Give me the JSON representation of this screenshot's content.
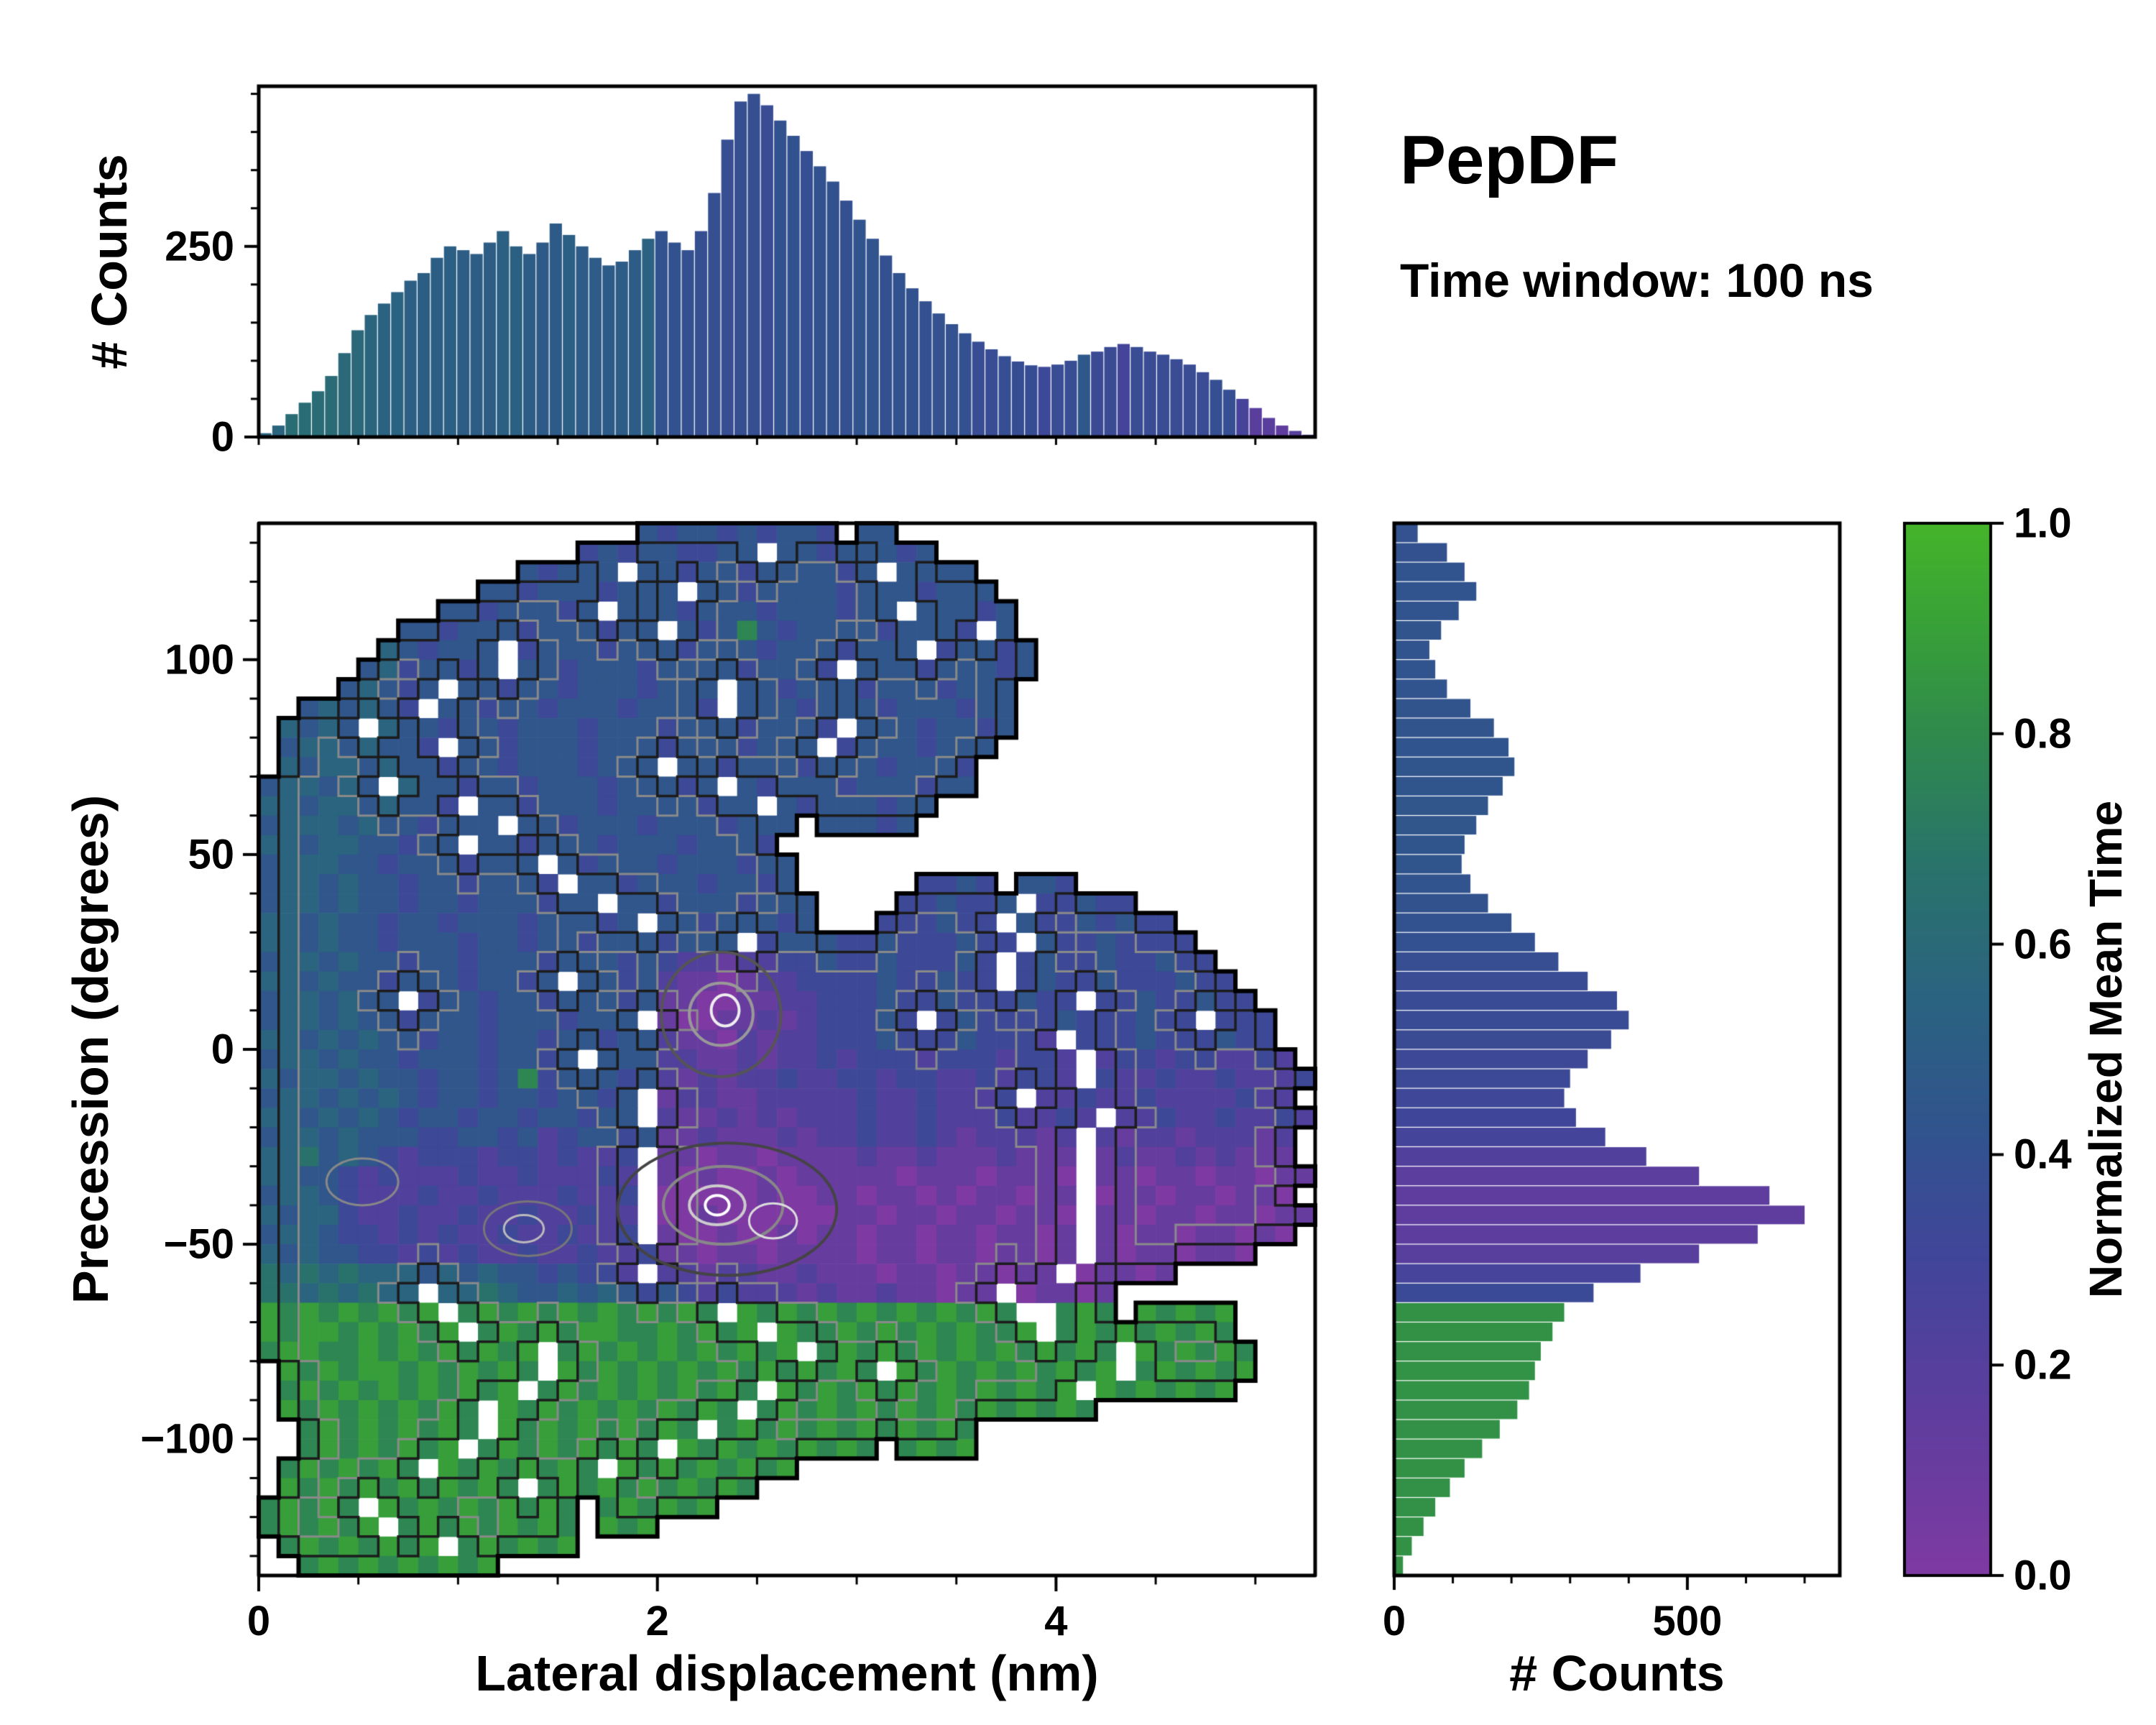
{
  "chart_data": {
    "type": "heatmap",
    "title": "PepDF",
    "subtitle": "Time window: 100 ns",
    "colormap": {
      "label": "Normalized Mean Time",
      "ticks": [
        0.0,
        0.2,
        0.4,
        0.6,
        0.8,
        1.0
      ],
      "stops": [
        {
          "t": 0.0,
          "color": "#7e3aa2"
        },
        {
          "t": 0.15,
          "color": "#5f3d9e"
        },
        {
          "t": 0.3,
          "color": "#41459a"
        },
        {
          "t": 0.42,
          "color": "#31538e"
        },
        {
          "t": 0.55,
          "color": "#2a6380"
        },
        {
          "t": 0.68,
          "color": "#29746a"
        },
        {
          "t": 0.8,
          "color": "#2f8a4c"
        },
        {
          "t": 0.9,
          "color": "#38a038"
        },
        {
          "t": 1.0,
          "color": "#45b42a"
        }
      ]
    },
    "heatmap": {
      "xlabel": "Lateral displacement (nm)",
      "ylabel": "Precession (degrees)",
      "xlim": [
        0,
        5.3
      ],
      "ylim": [
        -135,
        135
      ],
      "xticks": [
        0,
        2,
        4
      ],
      "yticks": [
        100,
        50,
        0,
        -50,
        -100
      ],
      "grid_cols": 53,
      "grid_rows": 54,
      "value_encoding": "rows are [start_col, segments...]; '.'=empty bin (white), digit d = Normalized Mean Time d/9; row 0 = y bin [130,135] deg, col 0 = x bin [0,0.1] nm",
      "rows": [
        [
          19,
          "4344343443.44"
        ],
        [
          16,
          "343443344.44344434"
        ],
        [
          13,
          "43444.443443444434.4444"
        ],
        [
          11,
          "4434443444.443444434443444"
        ],
        [
          9,
          "44344434.44434443444344.44434"
        ],
        [
          7,
          "4434443444344.434743444434443.4"
        ],
        [
          6,
          "543444.34443444344434443444.34434"
        ],
        [
          5,
          "4534434.4434443444434443.444344434"
        ],
        [
          4,
          "45434.4434434443444.44344434443444"
        ],
        [
          2,
          "454543.44344344434443.44434443444344"
        ],
        [
          1,
          "5454.54434434443444344434443.44434434"
        ],
        [
          1,
          "45545443.443444344434443444.34443444"
        ],
        [
          1,
          "5455454434434443444.443444344434443"
        ],
        [
          0,
          "455454.5443443444344434.434443444344"
        ],
        [
          0,
          "5545545443.44344434444344.43444344"
        ],
        [
          0,
          "455545443444.44344434443444.44434"
        ],
        [
          0,
          "5545544344.443444344434443"
        ],
        [
          0,
          "45554434443444.434443444344"
        ],
        [
          0,
          "455454434434443.44344434434",
          "......",
          "3343.443"
        ],
        [
          0,
          "45545443443444344.4434443444",
          "....",
          "334334.33433"
        ],
        [
          0,
          "5545443443444344434.44344434",
          "...",
          "333433.43343433"
        ],
        [
          0,
          "55454434",
          "4434434434443444.344",
          "4334333433.43343333"
        ],
        [
          0,
          "45545443",
          "443444344434",
          "32212233",
          "433433343.3433433433"
        ],
        [
          0,
          "55454434",
          "4434434.4434",
          "21101223",
          "333433433.34334333433"
        ],
        [
          0,
          "4554544.3",
          "44344344434",
          "11001122",
          "3334334333433.33433433"
        ],
        [
          0,
          "455454434",
          "4434443444.",
          "10011212",
          "33343.3433334333433.333"
        ],
        [
          0,
          "554545443",
          "44344344344",
          "21102122",
          "333433343332.3334333433."
        ],
        [
          0,
          "455454434",
          "4434434.444",
          "22112122",
          "3233323332332.2332332232."
        ],
        [
          0,
          "545545443",
          "44347344434",
          "21212232",
          "2332332232332.32232232223"
        ],
        [
          0,
          "455454543",
          "4434434434.",
          "12211222",
          "2232232223.2232232222322."
        ],
        [
          0,
          "554545434",
          "4344344344.",
          "21121212",
          "22322322232232.2232232232"
        ],
        [
          0,
          "455454443",
          "34434234434",
          "11211121",
          "2232232122212.2122122212."
        ],
        [
          0,
          "556454323",
          "3323323223.",
          "11011011",
          "1121121112111.1211212111."
        ],
        [
          0,
          "554432322",
          "2322322232.",
          "10100101",
          "1111011101110.11011011011"
        ],
        [
          0,
          "455432223",
          "2232223223.",
          "00000100",
          "1101101011011.0110110110."
        ],
        [
          0,
          "545532232",
          "2322322322.",
          "00100000",
          "0110110110110.11011011011"
        ],
        [
          0,
          "455433232",
          "3223223223.",
          "10010010",
          "1101101101101.1011011010."
        ],
        [
          0,
          "545443323",
          "23223223223",
          "11011011",
          "1101101101101.10110110."
        ],
        [
          0,
          "656565554",
          "5454434332.",
          "22122112",
          "111011011011.01101"
        ],
        [
          0,
          "66565655.",
          "55654454543",
          "43232221",
          "211211011.01101"
        ],
        [
          0,
          "878787878.7878787878787.87878787878787",
          "..",
          "787.87878"
        ],
        [
          0,
          "8788787878.78787887787878.8778787878778.787878787"
        ],
        [
          0,
          "78877878787878.787878787878.787878787878787.878787"
        ],
        [
          1,
          "8787887878787.8787878787878787.87878787878.787878"
        ],
        [
          1,
          "787878787878.78787878787.878787878787878.8787878"
        ],
        [
          1,
          "8787878787.878787878787.78787878787878787"
        ],
        [
          2,
          "787878787.8787878787.7878787878787"
        ],
        [
          2,
          "78787878.787878787.8787878787",
          ".",
          "7878"
        ],
        [
          1,
          "7878787.87878787.878787878"
        ],
        [
          1,
          "878787878787.78787878787"
        ],
        [
          0,
          "78787.8787878787.787878"
        ],
        [
          0,
          "787878.787878787.878"
        ],
        [
          1,
          "78787878.787878"
        ],
        [
          2,
          "7878787878"
        ]
      ],
      "contour_rings": [
        {
          "x": 2.32,
          "y": 9,
          "rx": 0.3,
          "ry": 16,
          "color": "#555555",
          "lw": 4
        },
        {
          "x": 2.32,
          "y": 9,
          "rx": 0.16,
          "ry": 8,
          "color": "#999999",
          "lw": 4
        },
        {
          "x": 2.34,
          "y": 10,
          "rx": 0.07,
          "ry": 4,
          "color": "#eeeeee",
          "lw": 4
        },
        {
          "x": 2.35,
          "y": -41,
          "rx": 0.55,
          "ry": 17,
          "color": "#444444",
          "lw": 4
        },
        {
          "x": 2.33,
          "y": -40,
          "rx": 0.3,
          "ry": 10,
          "color": "#888888",
          "lw": 4
        },
        {
          "x": 2.3,
          "y": -40,
          "rx": 0.14,
          "ry": 5,
          "color": "#cccccc",
          "lw": 4
        },
        {
          "x": 2.3,
          "y": -40,
          "rx": 0.06,
          "ry": 2.5,
          "color": "#ffffff",
          "lw": 4
        },
        {
          "x": 2.58,
          "y": -44,
          "rx": 0.12,
          "ry": 4.5,
          "color": "#dddddd",
          "lw": 3
        },
        {
          "x": 1.35,
          "y": -46,
          "rx": 0.22,
          "ry": 7,
          "color": "#777777",
          "lw": 3
        },
        {
          "x": 1.33,
          "y": -46,
          "rx": 0.1,
          "ry": 3.5,
          "color": "#bbbbbb",
          "lw": 3
        },
        {
          "x": 0.52,
          "y": -34,
          "rx": 0.18,
          "ry": 6,
          "color": "#888888",
          "lw": 3
        }
      ]
    },
    "top_hist": {
      "ylabel": "# Counts",
      "yticks": [
        0,
        250
      ],
      "ymax": 460,
      "x_range": [
        0,
        5.3
      ],
      "values": [
        5,
        15,
        30,
        45,
        60,
        80,
        110,
        140,
        160,
        175,
        190,
        205,
        215,
        235,
        250,
        245,
        240,
        255,
        270,
        250,
        240,
        255,
        280,
        265,
        250,
        235,
        225,
        230,
        245,
        260,
        270,
        255,
        245,
        270,
        320,
        390,
        440,
        450,
        435,
        415,
        395,
        375,
        355,
        335,
        310,
        285,
        260,
        238,
        215,
        195,
        178,
        162,
        148,
        136,
        125,
        115,
        106,
        99,
        94,
        92,
        95,
        100,
        108,
        112,
        118,
        122,
        118,
        112,
        108,
        102,
        95,
        85,
        75,
        62,
        50,
        38,
        25,
        15,
        8,
        3
      ]
    },
    "right_hist": {
      "xlabel": "# Counts",
      "xticks": [
        0,
        500
      ],
      "xmax": 760,
      "y_range": [
        135,
        -135
      ],
      "values": [
        40,
        90,
        120,
        140,
        110,
        80,
        60,
        70,
        90,
        130,
        170,
        195,
        205,
        185,
        160,
        140,
        120,
        115,
        130,
        160,
        200,
        240,
        280,
        330,
        380,
        400,
        370,
        330,
        300,
        290,
        310,
        360,
        430,
        520,
        640,
        700,
        620,
        520,
        420,
        340,
        290,
        270,
        250,
        240,
        230,
        210,
        180,
        150,
        120,
        95,
        70,
        50,
        30,
        15
      ]
    }
  }
}
